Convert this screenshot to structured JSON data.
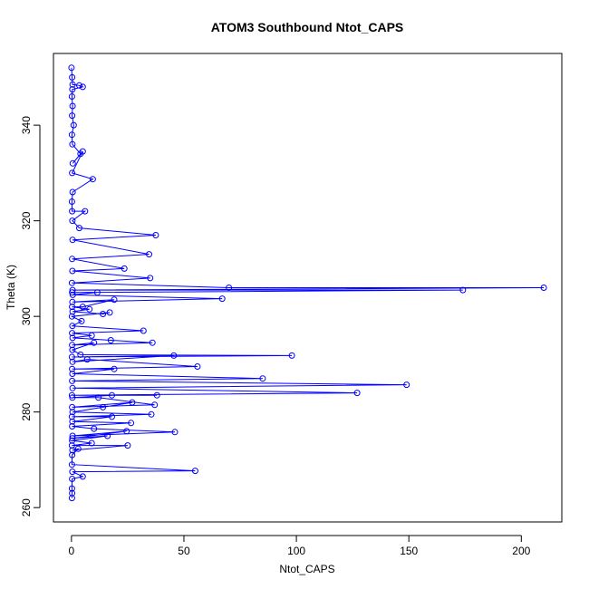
{
  "chart_data": {
    "type": "scatter",
    "title": "ATOM3 Southbound Ntot_CAPS",
    "xlabel": "Ntot_CAPS",
    "ylabel": "Theta (K)",
    "xlim": [
      -8,
      218
    ],
    "ylim": [
      257,
      355
    ],
    "x_ticks": [
      0,
      50,
      100,
      150,
      200
    ],
    "y_ticks": [
      260,
      280,
      300,
      320,
      340
    ],
    "x_tick_labels": [
      "0",
      "50",
      "100",
      "150",
      "200"
    ],
    "y_tick_labels": [
      "260",
      "280",
      "300",
      "320",
      "340"
    ],
    "point_style": "open-circle",
    "connected": true,
    "grid": false,
    "legend": "none",
    "series": [
      {
        "color": "#0000ff",
        "points": [
          [
            0.0,
            352.0
          ],
          [
            0.3,
            350.0
          ],
          [
            0.5,
            348.5
          ],
          [
            3.5,
            348.3
          ],
          [
            5.0,
            348.0
          ],
          [
            0.4,
            347.5
          ],
          [
            0.2,
            346.0
          ],
          [
            0.5,
            344.0
          ],
          [
            0.3,
            342.0
          ],
          [
            1.0,
            340.0
          ],
          [
            0.2,
            338.0
          ],
          [
            0.4,
            336.0
          ],
          [
            4.0,
            334.0
          ],
          [
            0.6,
            332.0
          ],
          [
            5.0,
            334.5
          ],
          [
            0.3,
            330.0
          ],
          [
            9.5,
            328.7
          ],
          [
            0.5,
            326.0
          ],
          [
            0.2,
            324.0
          ],
          [
            0.3,
            322.0
          ],
          [
            6.0,
            322.0
          ],
          [
            0.4,
            320.0
          ],
          [
            3.5,
            318.5
          ],
          [
            37.5,
            317.0
          ],
          [
            0.5,
            316.0
          ],
          [
            34.5,
            313.0
          ],
          [
            0.3,
            312.0
          ],
          [
            23.5,
            310.0
          ],
          [
            0.4,
            309.5
          ],
          [
            35.0,
            308.0
          ],
          [
            0.2,
            307.0
          ],
          [
            70.0,
            306.0
          ],
          [
            210.0,
            306.0
          ],
          [
            0.5,
            305.5
          ],
          [
            174.0,
            305.5
          ],
          [
            0.3,
            305.0
          ],
          [
            11.5,
            305.0
          ],
          [
            0.6,
            304.5
          ],
          [
            67.0,
            303.7
          ],
          [
            0.4,
            303.0
          ],
          [
            19.0,
            303.5
          ],
          [
            5.0,
            302.0
          ],
          [
            0.3,
            302.0
          ],
          [
            8.0,
            301.5
          ],
          [
            0.5,
            301.0
          ],
          [
            14.0,
            300.5
          ],
          [
            17.0,
            300.8
          ],
          [
            0.2,
            300.0
          ],
          [
            4.5,
            299.0
          ],
          [
            0.4,
            298.0
          ],
          [
            32.0,
            297.0
          ],
          [
            0.3,
            296.5
          ],
          [
            9.0,
            296.0
          ],
          [
            0.5,
            295.5
          ],
          [
            17.5,
            295.0
          ],
          [
            36.0,
            294.5
          ],
          [
            0.3,
            294.0
          ],
          [
            10.0,
            294.5
          ],
          [
            0.4,
            293.0
          ],
          [
            4.0,
            292.0
          ],
          [
            98.0,
            291.8
          ],
          [
            0.2,
            291.5
          ],
          [
            45.5,
            291.8
          ],
          [
            0.5,
            290.5
          ],
          [
            7.0,
            291.0
          ],
          [
            56.0,
            289.5
          ],
          [
            0.3,
            289.0
          ],
          [
            19.0,
            289.0
          ],
          [
            0.4,
            288.0
          ],
          [
            85.0,
            287.0
          ],
          [
            0.3,
            286.5
          ],
          [
            149.0,
            285.7
          ],
          [
            0.5,
            285.0
          ],
          [
            127.0,
            284.0
          ],
          [
            0.2,
            283.5
          ],
          [
            38.0,
            283.5
          ],
          [
            18.0,
            283.5
          ],
          [
            0.4,
            283.0
          ],
          [
            12.0,
            283.0
          ],
          [
            37.0,
            281.5
          ],
          [
            0.3,
            281.0
          ],
          [
            27.0,
            282.0
          ],
          [
            14.0,
            281.0
          ],
          [
            0.5,
            280.0
          ],
          [
            35.5,
            279.5
          ],
          [
            0.2,
            279.0
          ],
          [
            18.0,
            279.0
          ],
          [
            0.4,
            278.0
          ],
          [
            26.5,
            277.7
          ],
          [
            0.3,
            277.0
          ],
          [
            10.0,
            276.5
          ],
          [
            46.0,
            275.8
          ],
          [
            0.5,
            275.0
          ],
          [
            24.5,
            276.0
          ],
          [
            0.4,
            274.5
          ],
          [
            16.0,
            275.0
          ],
          [
            0.3,
            274.0
          ],
          [
            9.0,
            273.5
          ],
          [
            0.2,
            273.0
          ],
          [
            25.0,
            273.0
          ],
          [
            0.4,
            272.0
          ],
          [
            3.0,
            272.3
          ],
          [
            0.3,
            271.0
          ],
          [
            0.2,
            269.0
          ],
          [
            55.0,
            267.7
          ],
          [
            0.4,
            267.5
          ],
          [
            5.0,
            266.5
          ],
          [
            0.3,
            266.0
          ],
          [
            0.2,
            264.0
          ],
          [
            0.3,
            263.0
          ],
          [
            0.2,
            262.0
          ]
        ]
      }
    ]
  }
}
